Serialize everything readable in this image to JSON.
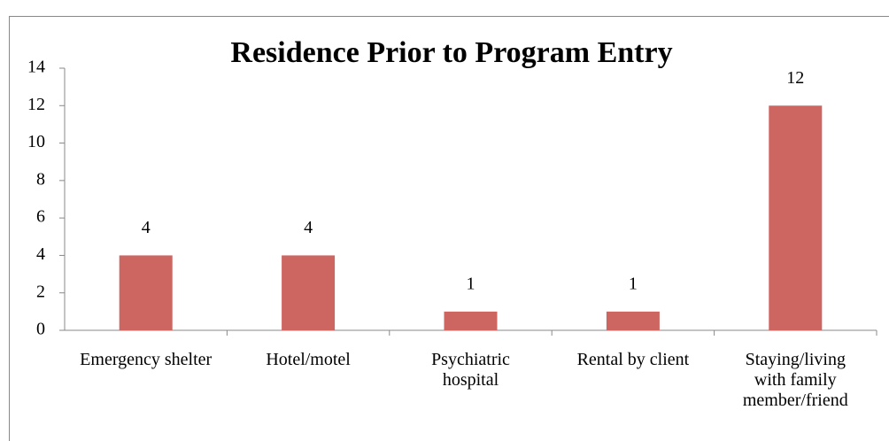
{
  "chart_data": {
    "type": "bar",
    "title": "Residence Prior to Program Entry",
    "categories": [
      "Emergency shelter",
      "Hotel/motel",
      "Psychiatric hospital",
      "Rental by client",
      "Staying/living with family member/friend"
    ],
    "values": [
      4,
      4,
      1,
      1,
      12
    ],
    "color": "#cd6560",
    "ylim": [
      0,
      14
    ],
    "yticks": [
      0,
      2,
      4,
      6,
      8,
      10,
      12,
      14
    ],
    "grid": false,
    "data_labels": true
  }
}
